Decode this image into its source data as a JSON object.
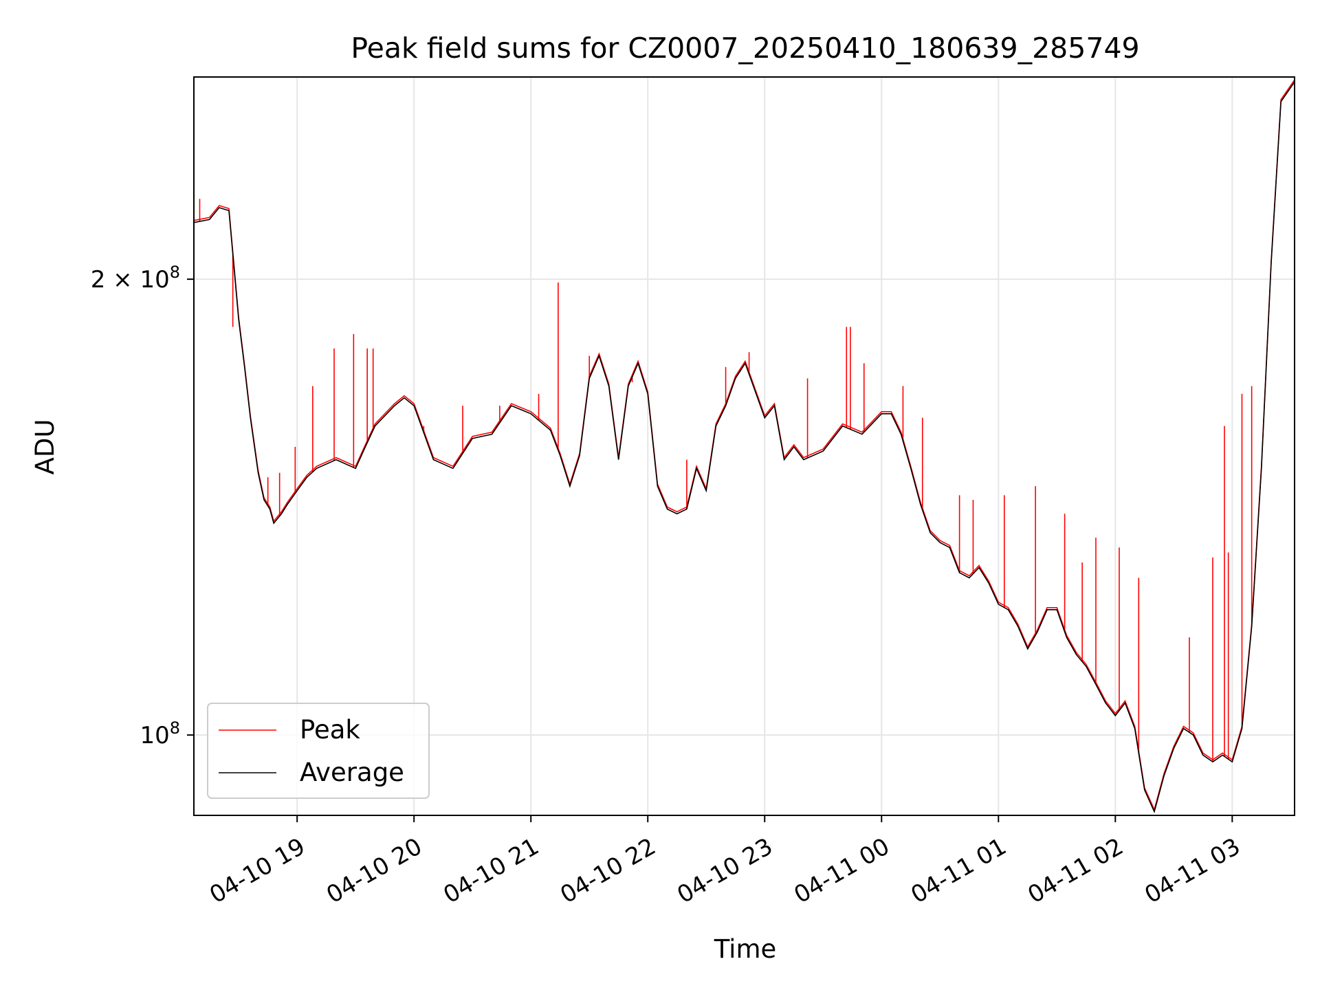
{
  "chart_data": {
    "type": "line",
    "title": "Peak field sums for CZ0007_20250410_180639_285749",
    "xlabel": "Time",
    "ylabel": "ADU",
    "y_scale": "log",
    "ylim": [
      88500000,
      272000000
    ],
    "xlim": [
      "2025-04-10 18:07",
      "2025-04-11 03:32"
    ],
    "x_ticks": [
      "04-10 19",
      "04-10 20",
      "04-10 21",
      "04-10 22",
      "04-10 23",
      "04-11 00",
      "04-11 01",
      "04-11 02",
      "04-11 03"
    ],
    "x_tick_times": [
      "2025-04-10 19:00",
      "2025-04-10 20:00",
      "2025-04-10 21:00",
      "2025-04-10 22:00",
      "2025-04-10 23:00",
      "2025-04-11 00:00",
      "2025-04-11 01:00",
      "2025-04-11 02:00",
      "2025-04-11 03:00"
    ],
    "y_ticks": [
      "2 × 10^8",
      "10^8"
    ],
    "y_tick_values": [
      200000000,
      100000000
    ],
    "grid": true,
    "legend_position": "lower-left",
    "series": [
      {
        "name": "Average",
        "color": "#000000",
        "x": [
          "2025-04-10 18:07",
          "2025-04-10 18:15",
          "2025-04-10 18:20",
          "2025-04-10 18:25",
          "2025-04-10 18:30",
          "2025-04-10 18:33",
          "2025-04-10 18:36",
          "2025-04-10 18:40",
          "2025-04-10 18:43",
          "2025-04-10 18:46",
          "2025-04-10 18:48",
          "2025-04-10 18:52",
          "2025-04-10 18:55",
          "2025-04-10 19:00",
          "2025-04-10 19:05",
          "2025-04-10 19:10",
          "2025-04-10 19:20",
          "2025-04-10 19:30",
          "2025-04-10 19:35",
          "2025-04-10 19:40",
          "2025-04-10 19:50",
          "2025-04-10 19:55",
          "2025-04-10 20:00",
          "2025-04-10 20:10",
          "2025-04-10 20:20",
          "2025-04-10 20:30",
          "2025-04-10 20:40",
          "2025-04-10 20:50",
          "2025-04-10 21:00",
          "2025-04-10 21:10",
          "2025-04-10 21:15",
          "2025-04-10 21:20",
          "2025-04-10 21:25",
          "2025-04-10 21:30",
          "2025-04-10 21:35",
          "2025-04-10 21:40",
          "2025-04-10 21:45",
          "2025-04-10 21:50",
          "2025-04-10 21:55",
          "2025-04-10 22:00",
          "2025-04-10 22:05",
          "2025-04-10 22:10",
          "2025-04-10 22:15",
          "2025-04-10 22:20",
          "2025-04-10 22:25",
          "2025-04-10 22:30",
          "2025-04-10 22:35",
          "2025-04-10 22:40",
          "2025-04-10 22:45",
          "2025-04-10 22:50",
          "2025-04-10 23:00",
          "2025-04-10 23:05",
          "2025-04-10 23:10",
          "2025-04-10 23:15",
          "2025-04-10 23:20",
          "2025-04-10 23:30",
          "2025-04-10 23:40",
          "2025-04-10 23:50",
          "2025-04-11 00:00",
          "2025-04-11 00:05",
          "2025-04-11 00:10",
          "2025-04-11 00:15",
          "2025-04-11 00:20",
          "2025-04-11 00:25",
          "2025-04-11 00:30",
          "2025-04-11 00:35",
          "2025-04-11 00:40",
          "2025-04-11 00:45",
          "2025-04-11 00:50",
          "2025-04-11 00:55",
          "2025-04-11 01:00",
          "2025-04-11 01:05",
          "2025-04-11 01:10",
          "2025-04-11 01:15",
          "2025-04-11 01:20",
          "2025-04-11 01:25",
          "2025-04-11 01:30",
          "2025-04-11 01:35",
          "2025-04-11 01:40",
          "2025-04-11 01:45",
          "2025-04-11 01:50",
          "2025-04-11 01:55",
          "2025-04-11 02:00",
          "2025-04-11 02:05",
          "2025-04-11 02:10",
          "2025-04-11 02:15",
          "2025-04-11 02:20",
          "2025-04-11 02:25",
          "2025-04-11 02:30",
          "2025-04-11 02:35",
          "2025-04-11 02:40",
          "2025-04-11 02:45",
          "2025-04-11 02:50",
          "2025-04-11 02:55",
          "2025-04-11 03:00",
          "2025-04-11 03:05",
          "2025-04-11 03:10",
          "2025-04-11 03:15",
          "2025-04-11 03:20",
          "2025-04-11 03:25",
          "2025-04-11 03:32"
        ],
        "y": [
          218000000,
          219000000,
          223000000,
          222000000,
          188000000,
          175000000,
          162000000,
          149000000,
          143000000,
          141000000,
          138000000,
          140000000,
          142000000,
          145000000,
          148000000,
          150000000,
          152000000,
          150000000,
          155000000,
          160000000,
          165000000,
          167000000,
          165000000,
          152000000,
          150000000,
          157000000,
          158000000,
          165000000,
          163000000,
          159000000,
          153000000,
          146000000,
          153000000,
          172000000,
          178000000,
          170000000,
          152000000,
          170000000,
          176000000,
          168000000,
          146000000,
          141000000,
          140000000,
          141000000,
          150000000,
          145000000,
          160000000,
          165000000,
          172000000,
          176000000,
          162000000,
          165000000,
          152000000,
          155000000,
          152000000,
          154000000,
          160000000,
          158000000,
          163000000,
          163000000,
          158000000,
          150000000,
          142000000,
          136000000,
          134000000,
          133000000,
          128000000,
          127000000,
          129000000,
          126000000,
          122000000,
          121000000,
          118000000,
          114000000,
          117000000,
          121000000,
          121000000,
          116000000,
          113000000,
          111000000,
          108000000,
          105000000,
          103000000,
          105000000,
          101000000,
          92000000,
          89000000,
          94000000,
          98000000,
          101000000,
          100000000,
          97000000,
          96000000,
          97000000,
          96000000,
          101000000,
          118000000,
          150000000,
          205000000,
          262000000,
          270000000
        ]
      },
      {
        "name": "Peak",
        "color": "#ff0000",
        "x": [
          "2025-04-10 18:10",
          "2025-04-10 18:27",
          "2025-04-10 18:40",
          "2025-04-10 18:45",
          "2025-04-10 18:51",
          "2025-04-10 18:59",
          "2025-04-10 19:08",
          "2025-04-10 19:19",
          "2025-04-10 19:29",
          "2025-04-10 19:36",
          "2025-04-10 19:39",
          "2025-04-10 20:05",
          "2025-04-10 20:25",
          "2025-04-10 20:44",
          "2025-04-10 21:04",
          "2025-04-10 21:14",
          "2025-04-10 21:30",
          "2025-04-10 21:52",
          "2025-04-10 22:20",
          "2025-04-10 22:40",
          "2025-04-10 22:52",
          "2025-04-10 23:22",
          "2025-04-10 23:42",
          "2025-04-10 23:44",
          "2025-04-10 23:51",
          "2025-04-11 00:11",
          "2025-04-11 00:21",
          "2025-04-11 00:40",
          "2025-04-11 00:47",
          "2025-04-11 01:03",
          "2025-04-11 01:19",
          "2025-04-11 01:34",
          "2025-04-11 01:43",
          "2025-04-11 01:50",
          "2025-04-11 02:02",
          "2025-04-11 02:12",
          "2025-04-11 02:38",
          "2025-04-11 02:50",
          "2025-04-11 02:56",
          "2025-04-11 02:58",
          "2025-04-11 03:05",
          "2025-04-11 03:10"
        ],
        "y": [
          226000000,
          186000000,
          149000000,
          148000000,
          149000000,
          155000000,
          170000000,
          180000000,
          184000000,
          180000000,
          180000000,
          160000000,
          165000000,
          165000000,
          168000000,
          199000000,
          178000000,
          171000000,
          152000000,
          175000000,
          179000000,
          172000000,
          186000000,
          186000000,
          176000000,
          170000000,
          162000000,
          144000000,
          143000000,
          144000000,
          146000000,
          140000000,
          130000000,
          135000000,
          133000000,
          127000000,
          116000000,
          131000000,
          160000000,
          132000000,
          168000000,
          170000000
        ]
      }
    ]
  }
}
